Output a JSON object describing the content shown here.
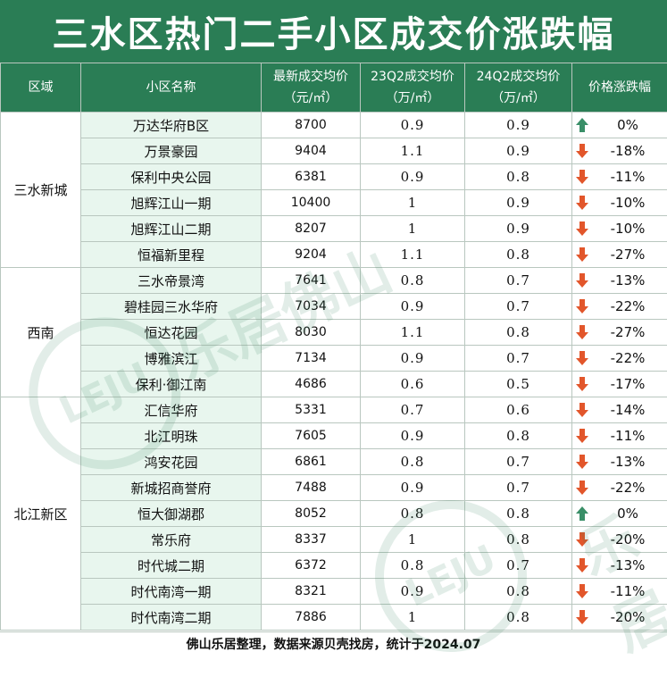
{
  "title": "三水区热门二手小区成交价涨跌幅",
  "headers": {
    "district": "区域",
    "name": "小区名称",
    "latest_line1": "最新成交均价",
    "latest_line2": "（元/㎡）",
    "q23_line1": "23Q2成交均价",
    "q23_line2": "（万/㎡）",
    "q24_line1": "24Q2成交均价",
    "q24_line2": "（万/㎡）",
    "change": "价格涨跌幅"
  },
  "colors": {
    "header_green": "#2a7d55",
    "name_bg": "#e8f6ee",
    "up_arrow": "#3a8f68",
    "down_arrow": "#e2562b"
  },
  "groups": [
    {
      "district": "三水新城",
      "rows": [
        {
          "name": "万达华府B区",
          "latest": "8700",
          "q23": "0.9",
          "q24": "0.9",
          "dir": "up",
          "change": "0%"
        },
        {
          "name": "万景豪园",
          "latest": "9404",
          "q23": "1.1",
          "q24": "0.9",
          "dir": "down",
          "change": "-18%"
        },
        {
          "name": "保利中央公园",
          "latest": "6381",
          "q23": "0.9",
          "q24": "0.8",
          "dir": "down",
          "change": "-11%"
        },
        {
          "name": "旭辉江山一期",
          "latest": "10400",
          "q23": "1",
          "q24": "0.9",
          "dir": "down",
          "change": "-10%"
        },
        {
          "name": "旭辉江山二期",
          "latest": "8207",
          "q23": "1",
          "q24": "0.9",
          "dir": "down",
          "change": "-10%"
        },
        {
          "name": "恒福新里程",
          "latest": "9204",
          "q23": "1.1",
          "q24": "0.8",
          "dir": "down",
          "change": "-27%"
        }
      ]
    },
    {
      "district": "西南",
      "rows": [
        {
          "name": "三水帝景湾",
          "latest": "7641",
          "q23": "0.8",
          "q24": "0.7",
          "dir": "down",
          "change": "-13%"
        },
        {
          "name": "碧桂园三水华府",
          "latest": "7034",
          "q23": "0.9",
          "q24": "0.7",
          "dir": "down",
          "change": "-22%"
        },
        {
          "name": "恒达花园",
          "latest": "8030",
          "q23": "1.1",
          "q24": "0.8",
          "dir": "down",
          "change": "-27%"
        },
        {
          "name": "博雅滨江",
          "latest": "7134",
          "q23": "0.9",
          "q24": "0.7",
          "dir": "down",
          "change": "-22%"
        },
        {
          "name": "保利·御江南",
          "latest": "4686",
          "q23": "0.6",
          "q24": "0.5",
          "dir": "down",
          "change": "-17%"
        }
      ]
    },
    {
      "district": "北江新区",
      "rows": [
        {
          "name": "汇信华府",
          "latest": "5331",
          "q23": "0.7",
          "q24": "0.6",
          "dir": "down",
          "change": "-14%"
        },
        {
          "name": "北江明珠",
          "latest": "7605",
          "q23": "0.9",
          "q24": "0.8",
          "dir": "down",
          "change": "-11%"
        },
        {
          "name": "鸿安花园",
          "latest": "6861",
          "q23": "0.8",
          "q24": "0.7",
          "dir": "down",
          "change": "-13%"
        },
        {
          "name": "新城招商誉府",
          "latest": "7488",
          "q23": "0.9",
          "q24": "0.7",
          "dir": "down",
          "change": "-22%"
        },
        {
          "name": "恒大御湖郡",
          "latest": "8052",
          "q23": "0.8",
          "q24": "0.8",
          "dir": "up",
          "change": "0%"
        },
        {
          "name": "常乐府",
          "latest": "8337",
          "q23": "1",
          "q24": "0.8",
          "dir": "down",
          "change": "-20%"
        },
        {
          "name": "时代城二期",
          "latest": "6372",
          "q23": "0.8",
          "q24": "0.7",
          "dir": "down",
          "change": "-13%"
        },
        {
          "name": "时代南湾一期",
          "latest": "8321",
          "q23": "0.9",
          "q24": "0.8",
          "dir": "down",
          "change": "-11%"
        },
        {
          "name": "时代南湾二期",
          "latest": "7886",
          "q23": "1",
          "q24": "0.8",
          "dir": "down",
          "change": "-20%"
        }
      ]
    }
  ],
  "footer": "佛山乐居整理，数据来源贝壳找房，统计于2024.07",
  "watermark": {
    "logo": "LEJU",
    "text": "乐居佛山"
  }
}
